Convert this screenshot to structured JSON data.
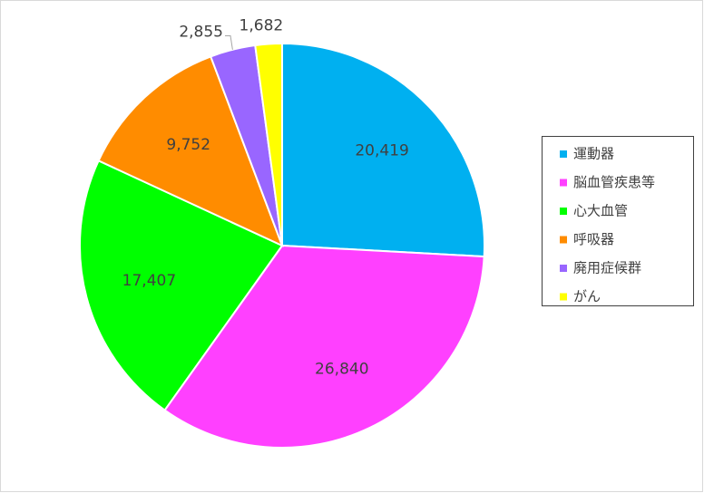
{
  "chart_data": {
    "type": "pie",
    "categories": [
      "運動器",
      "脳血管疾患等",
      "心大血管",
      "呼吸器",
      "廃用症候群",
      "がん"
    ],
    "values": [
      20419,
      26840,
      17407,
      9752,
      2855,
      1682
    ],
    "value_labels": [
      "20,419",
      "26,840",
      "17,407",
      "9,752",
      "2,855",
      "1,682"
    ],
    "colors": [
      "#00b0f0",
      "#ff40ff",
      "#00ff00",
      "#ff8c00",
      "#9966ff",
      "#ffff00"
    ],
    "legend": "right"
  }
}
